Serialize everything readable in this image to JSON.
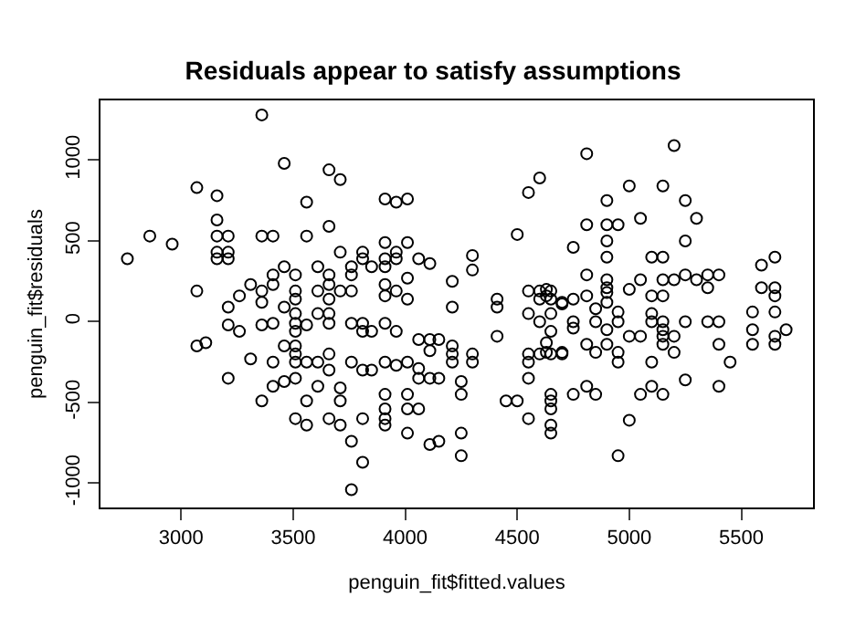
{
  "chart_data": {
    "type": "scatter",
    "title": "Residuals appear to satisfy assumptions",
    "xlabel": "penguin_fit$fitted.values",
    "ylabel": "penguin_fit$residuals",
    "x": [
      3360,
      3460,
      3660,
      3710,
      3070,
      3160,
      3560,
      3160,
      3660,
      2860,
      2960,
      3160,
      3210,
      3160,
      3210,
      3160,
      3210,
      3360,
      3410,
      3560,
      2760,
      3710,
      3070,
      3410,
      3410,
      3460,
      3510,
      3310,
      3360,
      3260,
      3610,
      3660,
      3660,
      3210,
      3360,
      3460,
      3510,
      3510,
      3610,
      3660,
      3210,
      3260,
      3360,
      3410,
      3510,
      3510,
      3510,
      3560,
      3610,
      3660,
      3660,
      3460,
      3510,
      3510,
      3510,
      3070,
      3110,
      3310,
      3410,
      3210,
      3410,
      3460,
      3510,
      3560,
      3610,
      3610,
      3660,
      3660,
      3360,
      3560,
      3510,
      3560,
      3660,
      3710,
      3910,
      3960,
      4010,
      3910,
      4010,
      3810,
      3960,
      3760,
      3760,
      3810,
      3850,
      3910,
      3960,
      3910,
      4060,
      4110,
      4010,
      3910,
      4300,
      4300,
      4210,
      3710,
      3760,
      3910,
      3960,
      4010,
      4210,
      4410,
      4410,
      3760,
      3810,
      3810,
      3850,
      3910,
      3960,
      4410,
      4060,
      4110,
      4150,
      4110,
      4210,
      4210,
      4210,
      4300,
      4300,
      3760,
      3910,
      3960,
      4010,
      3810,
      3850,
      4060,
      4060,
      4110,
      4150,
      3710,
      3710,
      4250,
      4250,
      3910,
      4010,
      3910,
      3910,
      3910,
      3810,
      4010,
      4060,
      4450,
      4500,
      4550,
      4010,
      3760,
      4110,
      4150,
      4250,
      4250,
      3810,
      3760,
      4500,
      4550,
      4600,
      4550,
      4600,
      4650,
      4600,
      4650,
      4550,
      4600,
      4650,
      4700,
      4650,
      4550,
      4600,
      4650,
      4700,
      4550,
      4550,
      4650,
      4650,
      4650,
      4650,
      4650,
      4810,
      5200,
      5000,
      5150,
      4900,
      5250,
      4810,
      4900,
      4950,
      5050,
      5300,
      4900,
      4900,
      5250,
      4750,
      5100,
      5150,
      4810,
      4900,
      4900,
      4900,
      4900,
      5000,
      5050,
      5150,
      5200,
      5250,
      5300,
      5350,
      5400,
      5350,
      5100,
      5150,
      5590,
      5650,
      5590,
      5650,
      5650,
      4630,
      4630,
      4700,
      4750,
      4810,
      4850,
      4950,
      4750,
      4750,
      4850,
      4900,
      4950,
      5100,
      5100,
      5150,
      5150,
      5250,
      5350,
      5400,
      5550,
      5550,
      5650,
      5650,
      5650,
      5700,
      5550,
      4810,
      4850,
      4900,
      4950,
      4950,
      5000,
      5050,
      5150,
      5150,
      5200,
      5200,
      5400,
      5450,
      5100,
      4630,
      4630,
      4700,
      4750,
      4810,
      4850,
      5050,
      5100,
      5150,
      5250,
      5400,
      5000,
      4950
    ],
    "values": [
      1280,
      980,
      940,
      880,
      830,
      780,
      740,
      630,
      590,
      530,
      480,
      530,
      530,
      430,
      430,
      390,
      390,
      530,
      530,
      530,
      390,
      430,
      190,
      290,
      230,
      340,
      290,
      230,
      190,
      160,
      340,
      290,
      230,
      90,
      120,
      90,
      190,
      140,
      190,
      140,
      -20,
      -60,
      -20,
      -10,
      50,
      -10,
      -60,
      -20,
      50,
      50,
      -10,
      -150,
      -150,
      -200,
      -250,
      -150,
      -130,
      -230,
      -250,
      -350,
      -400,
      -370,
      -350,
      -250,
      -250,
      -400,
      -200,
      -300,
      -490,
      -490,
      -600,
      -640,
      -600,
      -640,
      760,
      740,
      760,
      490,
      490,
      430,
      430,
      340,
      290,
      390,
      340,
      390,
      390,
      340,
      390,
      360,
      270,
      230,
      410,
      320,
      250,
      190,
      190,
      160,
      190,
      140,
      90,
      140,
      90,
      -10,
      -10,
      -60,
      -60,
      -10,
      -60,
      -90,
      -110,
      -110,
      -110,
      -180,
      -150,
      -200,
      -250,
      -200,
      -250,
      -250,
      -250,
      -270,
      -250,
      -300,
      -300,
      -290,
      -350,
      -350,
      -350,
      -410,
      -490,
      -370,
      -450,
      -450,
      -450,
      -540,
      -600,
      -640,
      -600,
      -540,
      -540,
      -490,
      -490,
      -600,
      -690,
      -740,
      -760,
      -740,
      -690,
      -830,
      -870,
      -1040,
      540,
      800,
      890,
      190,
      190,
      190,
      140,
      140,
      50,
      0,
      50,
      110,
      -60,
      -200,
      -200,
      -200,
      -200,
      -250,
      -350,
      -450,
      -490,
      -540,
      -640,
      -690,
      1040,
      1090,
      840,
      840,
      750,
      750,
      600,
      600,
      600,
      640,
      640,
      500,
      400,
      500,
      460,
      400,
      400,
      290,
      260,
      210,
      180,
      120,
      200,
      260,
      260,
      260,
      290,
      260,
      290,
      290,
      210,
      160,
      160,
      350,
      400,
      210,
      210,
      160,
      200,
      160,
      120,
      140,
      160,
      80,
      60,
      0,
      -40,
      0,
      -50,
      0,
      0,
      50,
      0,
      -50,
      0,
      0,
      0,
      60,
      -50,
      60,
      -90,
      -140,
      -50,
      -140,
      -140,
      -190,
      -140,
      -190,
      -250,
      -90,
      -90,
      -90,
      -140,
      -90,
      -190,
      -140,
      -250,
      -250,
      -130,
      -190,
      -190,
      -450,
      -400,
      -450,
      -450,
      -400,
      -450,
      -360,
      -400,
      -610,
      -830
    ],
    "color": "#000000",
    "marker": "circle",
    "grid": false,
    "xlim": [
      2640,
      5820
    ],
    "ylim": [
      -1150,
      1370
    ],
    "xticks": [
      3000,
      3500,
      4000,
      4500,
      5000,
      5500
    ],
    "yticks": [
      -1000,
      -500,
      0,
      500,
      1000
    ]
  }
}
